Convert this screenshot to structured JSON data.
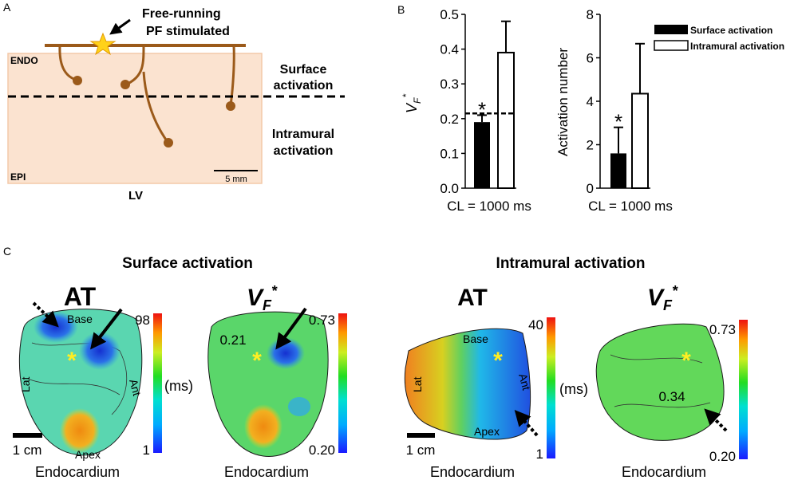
{
  "panel_a": {
    "label": "A",
    "stim_label_line1": "Free-running",
    "stim_label_line2": "PF stimulated",
    "endo": "ENDO",
    "epi": "EPI",
    "surface_line1": "Surface",
    "surface_line2": "activation",
    "intramural_line1": "Intramural",
    "intramural_line2": "activation",
    "scale": "5 mm",
    "lv": "LV"
  },
  "panel_b_label": "B",
  "panel_c": {
    "label": "C",
    "surface_title": "Surface activation",
    "intramural_title": "Intramural activation",
    "at": "AT",
    "vf": "V",
    "vf_sub": "F",
    "vf_sup": "*",
    "ms": "(ms)",
    "scale": "1 cm",
    "endocardium": "Endocardium",
    "base": "Base",
    "lat": "Lat",
    "ant": "Ant",
    "apex": "Apex",
    "star": "*",
    "map1": {
      "max": "98",
      "min": "1"
    },
    "map2": {
      "max": "0.73",
      "min": "0.20",
      "annot": "0.21"
    },
    "map3": {
      "max": "40",
      "min": "1"
    },
    "map4": {
      "max": "0.73",
      "min": "0.20",
      "annot": "0.34"
    }
  },
  "chart_data": [
    {
      "type": "bar",
      "title": "",
      "categories": [
        "Surface activation",
        "Intramural activation"
      ],
      "values": [
        0.19,
        0.39
      ],
      "errors": [
        0.02,
        0.09
      ],
      "ylabel_main": "V",
      "ylabel_sub": "F",
      "ylabel_sup": "*",
      "xlabel": "CL = 1000 ms",
      "ylim": [
        0,
        0.5
      ],
      "yticks": [
        "0.0",
        "0.1",
        "0.2",
        "0.3",
        "0.4",
        "0.5"
      ],
      "threshold": 0.215,
      "significance": "*"
    },
    {
      "type": "bar",
      "title": "",
      "categories": [
        "Surface activation",
        "Intramural activation"
      ],
      "values": [
        1.6,
        4.35
      ],
      "errors": [
        1.2,
        2.3
      ],
      "ylabel": "Activation number",
      "xlabel": "CL = 1000 ms",
      "ylim": [
        0,
        8
      ],
      "yticks": [
        "0",
        "2",
        "4",
        "6",
        "8"
      ],
      "significance": "*"
    }
  ],
  "legend": [
    "Surface activation",
    "Intramural activation"
  ]
}
